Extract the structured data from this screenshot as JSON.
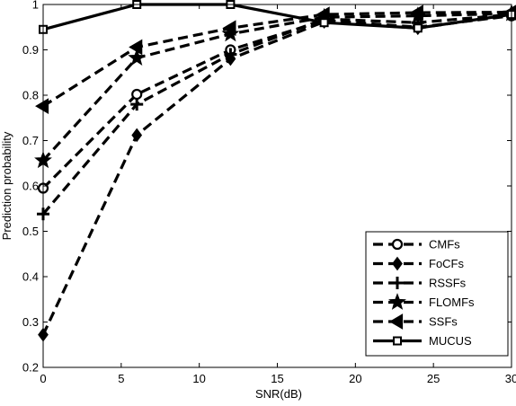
{
  "chart_data": {
    "type": "line",
    "title": "",
    "xlabel": "SNR(dB)",
    "ylabel": "Prediction probability",
    "xlim": [
      0,
      30
    ],
    "ylim": [
      0.2,
      1.0
    ],
    "xticks": [
      0,
      5,
      10,
      15,
      20,
      25,
      30
    ],
    "yticks": [
      0.2,
      0.3,
      0.4,
      0.5,
      0.6,
      0.7,
      0.8,
      0.9,
      1
    ],
    "grid": false,
    "legend_position": "bottom-right",
    "x": [
      0,
      6,
      12,
      18,
      24,
      30
    ],
    "series": [
      {
        "name": "CMFs",
        "marker": "circle",
        "style": "dashed",
        "color": "#000000",
        "values": [
          0.595,
          0.802,
          0.9,
          0.965,
          0.95,
          0.975
        ]
      },
      {
        "name": "FoCFs",
        "marker": "diamond",
        "style": "dashed",
        "color": "#000000",
        "values": [
          0.272,
          0.712,
          0.88,
          0.962,
          0.948,
          0.977
        ]
      },
      {
        "name": "RSSFs",
        "marker": "plus",
        "style": "dashed",
        "color": "#000000",
        "values": [
          0.538,
          0.78,
          0.89,
          0.968,
          0.96,
          0.978
        ]
      },
      {
        "name": "FLOMFs",
        "marker": "star",
        "style": "dashed",
        "color": "#000000",
        "values": [
          0.656,
          0.882,
          0.935,
          0.972,
          0.975,
          0.98
        ]
      },
      {
        "name": "SSFs",
        "marker": "triangle-left",
        "style": "dashed",
        "color": "#000000",
        "values": [
          0.776,
          0.906,
          0.948,
          0.978,
          0.982,
          0.983
        ]
      },
      {
        "name": "MUCUS",
        "marker": "square",
        "style": "solid",
        "color": "#000000",
        "values": [
          0.945,
          1.0,
          1.0,
          0.96,
          0.948,
          0.978
        ]
      }
    ]
  }
}
